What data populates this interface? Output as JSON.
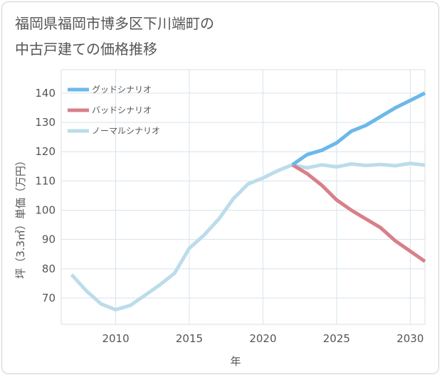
{
  "title": "福岡県福岡市博多区下川端町の\n中古戸建ての価格推移",
  "chart_data": {
    "type": "line",
    "title": "福岡県福岡市博多区下川端町の中古戸建ての価格推移",
    "xlabel": "年",
    "ylabel": "坪（3.3㎡）単価（万円）",
    "xlim": [
      2006.3,
      2031
    ],
    "ylim": [
      61,
      148
    ],
    "xticks": [
      2010,
      2015,
      2020,
      2025,
      2030
    ],
    "yticks": [
      70,
      80,
      90,
      100,
      110,
      120,
      130,
      140
    ],
    "grid": true,
    "legend_position": "top-left",
    "series": [
      {
        "name": "グッドシナリオ",
        "color": "#6cb8ea",
        "x": [
          2022,
          2023,
          2024,
          2025,
          2026,
          2027,
          2028,
          2029,
          2030,
          2031
        ],
        "y": [
          115.5,
          119,
          120.5,
          123,
          127,
          129,
          132,
          135,
          137.5,
          140
        ]
      },
      {
        "name": "バッドシナリオ",
        "color": "#d88089",
        "x": [
          2022,
          2023,
          2024,
          2025,
          2026,
          2027,
          2028,
          2029,
          2030,
          2031
        ],
        "y": [
          115.5,
          112.5,
          108.5,
          103.5,
          100,
          97,
          94,
          89.5,
          86,
          82.5
        ]
      },
      {
        "name": "ノーマルシナリオ",
        "color": "#bcdcea",
        "x": [
          2007,
          2008,
          2009,
          2010,
          2011,
          2012,
          2013,
          2014,
          2015,
          2016,
          2017,
          2018,
          2019,
          2020,
          2021,
          2022,
          2023,
          2024,
          2025,
          2026,
          2027,
          2028,
          2029,
          2030,
          2031
        ],
        "y": [
          78,
          72.5,
          68,
          66,
          67.5,
          71,
          74.5,
          78.5,
          87,
          91.5,
          97,
          104,
          109,
          111,
          113.5,
          115.5,
          114.5,
          115.5,
          114.8,
          115.8,
          115.3,
          115.6,
          115.2,
          116,
          115.4
        ]
      }
    ]
  }
}
